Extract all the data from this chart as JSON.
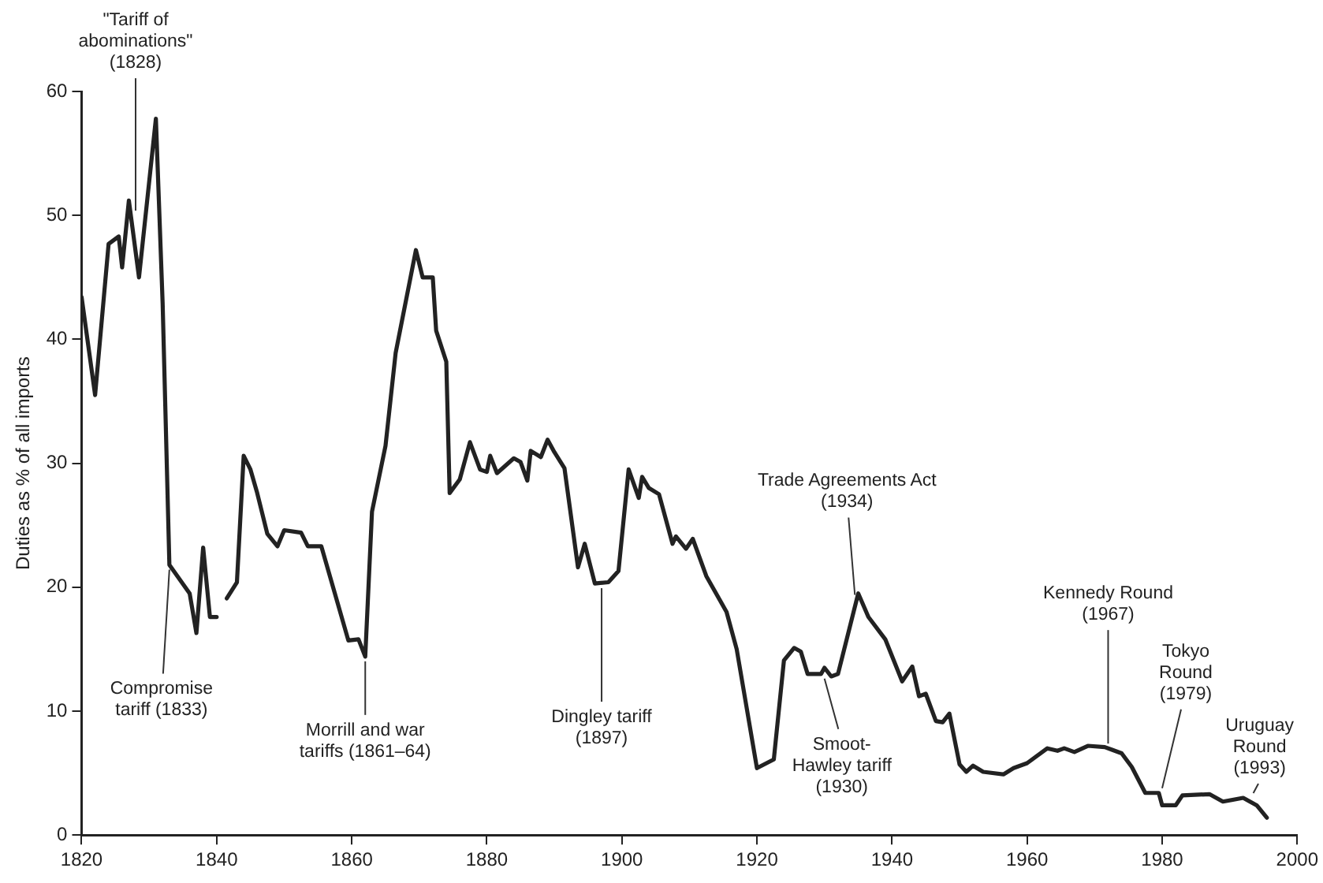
{
  "chart_data": {
    "type": "line",
    "ylabel": "Duties as % of all imports",
    "xlim": [
      1820,
      2000
    ],
    "xticks": [
      1820,
      1840,
      1860,
      1880,
      1900,
      1920,
      1940,
      1960,
      1980,
      2000
    ],
    "ylim": [
      0,
      60
    ],
    "yticks": [
      0,
      10,
      20,
      30,
      40,
      50,
      60
    ],
    "marker": "none",
    "line_style": "solid",
    "series": [
      {
        "color": "#222222",
        "x": [
          1820,
          1822,
          1824,
          1825.5,
          1826,
          1827,
          1828.5,
          1831,
          1832,
          1833,
          1836,
          1837,
          1838,
          1839,
          1840,
          1841,
          1841.5,
          1843,
          1844,
          1845,
          1846,
          1847.5,
          1849,
          1850,
          1852.5,
          1853.5,
          1855.5,
          1859.5,
          1861,
          1862,
          1863,
          1865,
          1866.5,
          1869.5,
          1870.5,
          1872,
          1872.5,
          1874,
          1874.5,
          1876,
          1877.5,
          1879,
          1880,
          1880.5,
          1881.5,
          1884,
          1885,
          1886,
          1886.5,
          1888,
          1889,
          1890,
          1891.5,
          1893.5,
          1894.5,
          1896,
          1898,
          1899.5,
          1901,
          1902.5,
          1903,
          1904,
          1905.5,
          1907.5,
          1908,
          1909.5,
          1910.5,
          1912.5,
          1915.5,
          1917,
          1920,
          1922.5,
          1924,
          1925.5,
          1926.5,
          1927.5,
          1929.5,
          1930,
          1931,
          1932,
          1935,
          1936.5,
          1939,
          1941.5,
          1943,
          1944,
          1945,
          1946.5,
          1947.5,
          1948.5,
          1950,
          1951,
          1952,
          1953.5,
          1956.5,
          1958,
          1960,
          1963,
          1964.5,
          1965.5,
          1967,
          1969,
          1971.5,
          1972.5,
          1974,
          1975.5,
          1977.5,
          1979.5,
          1980,
          1982,
          1983,
          1987,
          1989,
          1992,
          1994,
          1995.5
        ],
        "values": [
          43.4,
          35.5,
          47.7,
          48.3,
          45.8,
          51.2,
          45.0,
          57.8,
          42.9,
          21.8,
          19.5,
          16.3,
          23.2,
          17.6,
          17.6,
          null,
          19.1,
          20.4,
          30.6,
          29.5,
          27.6,
          24.3,
          23.3,
          24.6,
          24.4,
          23.3,
          23.3,
          15.7,
          15.8,
          14.4,
          26.1,
          31.4,
          38.9,
          47.2,
          45.0,
          45.0,
          40.7,
          38.2,
          27.6,
          28.7,
          31.7,
          29.5,
          29.3,
          30.6,
          29.2,
          30.4,
          30.1,
          28.6,
          31.0,
          30.5,
          31.9,
          30.9,
          29.6,
          21.6,
          23.5,
          20.3,
          20.4,
          21.3,
          29.5,
          27.2,
          28.9,
          28.0,
          27.5,
          23.5,
          24.1,
          23.1,
          23.9,
          20.9,
          18.0,
          15.0,
          5.4,
          6.1,
          14.1,
          15.1,
          14.8,
          13.0,
          13.0,
          13.5,
          12.8,
          13.0,
          19.5,
          17.6,
          15.8,
          12.4,
          13.6,
          11.2,
          11.4,
          9.2,
          9.1,
          9.8,
          5.7,
          5.1,
          5.6,
          5.1,
          4.9,
          5.4,
          5.8,
          7.0,
          6.8,
          7.0,
          6.7,
          7.2,
          7.1,
          6.9,
          6.6,
          5.5,
          3.4,
          3.4,
          2.4,
          2.4,
          3.2,
          3.3,
          2.7,
          3.0,
          2.4,
          1.4
        ]
      }
    ],
    "annotations": [
      {
        "text": "\"Tariff of abominations\" (1828)",
        "x": 1828,
        "y": 50
      },
      {
        "text": "Compromise tariff (1833)",
        "x": 1833,
        "y": 21.8
      },
      {
        "text": "Morrill and war tariffs (1861–64)",
        "x": 1862,
        "y": 14.4
      },
      {
        "text": "Dingley tariff (1897)",
        "x": 1897,
        "y": 20.3
      },
      {
        "text": "Trade Agreements Act (1934)",
        "x": 1934.5,
        "y": 19
      },
      {
        "text": "Smoot-Hawley tariff (1930)",
        "x": 1930,
        "y": 13
      },
      {
        "text": "Kennedy Round (1967)",
        "x": 1972,
        "y": 7
      },
      {
        "text": "Tokyo Round (1979)",
        "x": 1980,
        "y": 3.4
      },
      {
        "text": "Uruguay Round (1993)",
        "x": 1993.5,
        "y": 3
      }
    ]
  }
}
